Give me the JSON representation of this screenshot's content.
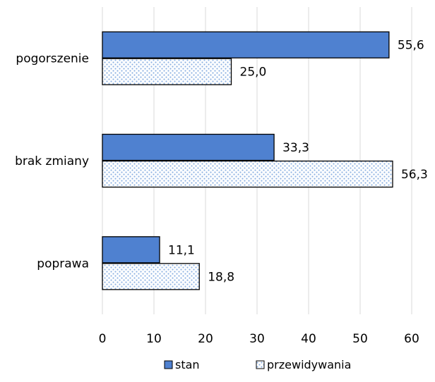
{
  "chart_data": {
    "type": "bar",
    "orientation": "horizontal",
    "categories": [
      "pogorszenie",
      "brak zmiany",
      "poprawa"
    ],
    "series": [
      {
        "name": "stan",
        "values": [
          55.6,
          33.3,
          11.1
        ],
        "labels": [
          "55,6",
          "33,3",
          "11,1"
        ],
        "color": "#4f81d0",
        "pattern": "solid"
      },
      {
        "name": "przewidywania",
        "values": [
          25.0,
          56.3,
          18.8
        ],
        "labels": [
          "25,0",
          "56,3",
          "18,8"
        ],
        "color": "#8fb3e3",
        "pattern": "dotted"
      }
    ],
    "xlim": [
      0,
      60
    ],
    "xticks": [
      "0",
      "10",
      "20",
      "30",
      "40",
      "50",
      "60"
    ],
    "grid": "vertical",
    "legend": "bottom-center"
  }
}
